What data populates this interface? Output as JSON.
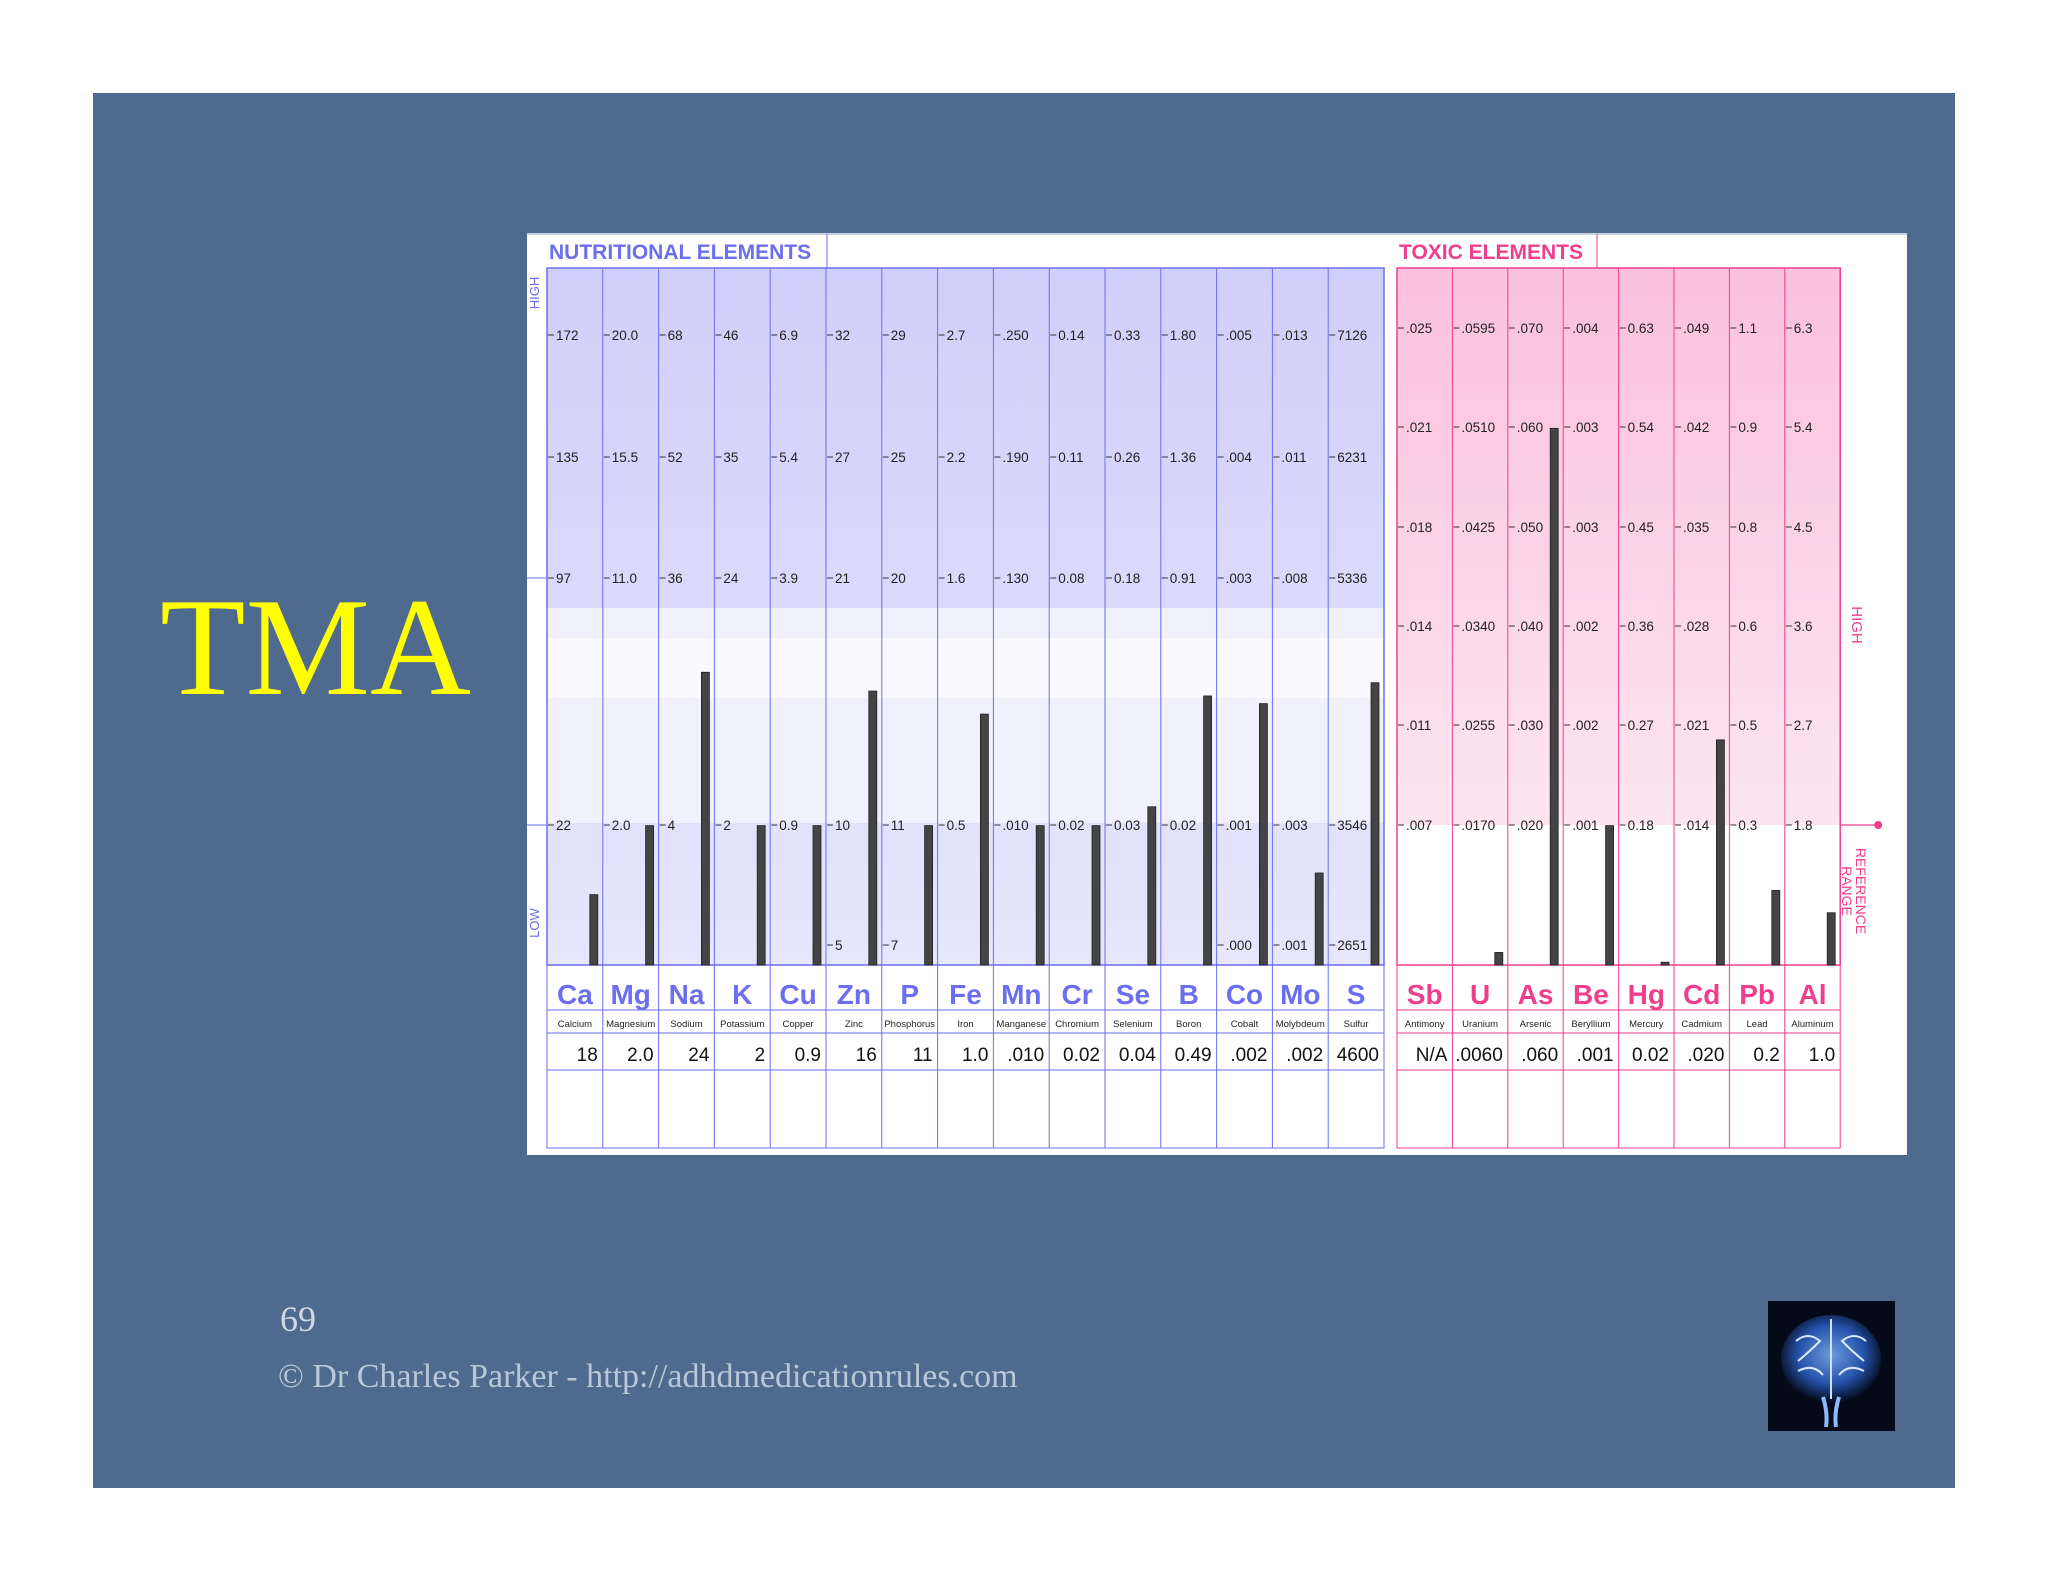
{
  "slide": {
    "title": "TMA",
    "page_number": "69",
    "footer": "©  Dr Charles Parker - http://adhdmedicationrules.com",
    "logo_icon": "brain-icon"
  },
  "colors": {
    "slide_background": "#4e6a8e",
    "title": "#ffff00",
    "nutritional": "#6b6ef0",
    "toxic": "#f03d8c",
    "bar": "#444444"
  },
  "chart_data": {
    "type": "bar",
    "groups": [
      {
        "title": "NUTRITIONAL  ELEMENTS",
        "side_label_high": "HIGH",
        "side_label_low": "LOW",
        "elements": [
          {
            "symbol": "Ca",
            "name": "Calcium",
            "result": "18",
            "ticks": [
              "172",
              "135",
              "97",
              "22"
            ],
            "level": 0.101
          },
          {
            "symbol": "Mg",
            "name": "Magnesium",
            "result": "2.0",
            "ticks": [
              "20.0",
              "15.5",
              "11.0",
              "2.0"
            ],
            "level": 0.2
          },
          {
            "symbol": "Na",
            "name": "Sodium",
            "result": "24",
            "ticks": [
              "68",
              "52",
              "36",
              "4"
            ],
            "level": 0.42
          },
          {
            "symbol": "K",
            "name": "Potassium",
            "result": "2",
            "ticks": [
              "46",
              "35",
              "24",
              "2"
            ],
            "level": 0.2
          },
          {
            "symbol": "Cu",
            "name": "Copper",
            "result": "0.9",
            "ticks": [
              "6.9",
              "5.4",
              "3.9",
              "0.9"
            ],
            "level": 0.2
          },
          {
            "symbol": "Zn",
            "name": "Zinc",
            "result": "16",
            "ticks": [
              "32",
              "27",
              "21",
              "10",
              "5"
            ],
            "level": 0.393
          },
          {
            "symbol": "P",
            "name": "Phosphorus",
            "result": "11",
            "ticks": [
              "29",
              "25",
              "20",
              "11",
              "7"
            ],
            "level": 0.2
          },
          {
            "symbol": "Fe",
            "name": "Iron",
            "result": "1.0",
            "ticks": [
              "2.7",
              "2.2",
              "1.6",
              "0.5"
            ],
            "level": 0.36
          },
          {
            "symbol": "Mn",
            "name": "Manganese",
            "result": ".010",
            "ticks": [
              ".250",
              ".190",
              ".130",
              ".010"
            ],
            "level": 0.2
          },
          {
            "symbol": "Cr",
            "name": "Chromium",
            "result": "0.02",
            "ticks": [
              "0.14",
              "0.11",
              "0.08",
              "0.02"
            ],
            "level": 0.2
          },
          {
            "symbol": "Se",
            "name": "Selenium",
            "result": "0.04",
            "ticks": [
              "0.33",
              "0.26",
              "0.18",
              "0.03"
            ],
            "level": 0.227
          },
          {
            "symbol": "B",
            "name": "Boron",
            "result": "0.49",
            "ticks": [
              "1.80",
              "1.36",
              "0.91",
              "0.02"
            ],
            "level": 0.386
          },
          {
            "symbol": "Co",
            "name": "Cobalt",
            "result": ".002",
            "ticks": [
              ".005",
              ".004",
              ".003",
              ".001",
              ".000"
            ],
            "level": 0.375
          },
          {
            "symbol": "Mo",
            "name": "Molybdeum",
            "result": ".002",
            "ticks": [
              ".013",
              ".011",
              ".008",
              ".003",
              ".001"
            ],
            "level": 0.132
          },
          {
            "symbol": "S",
            "name": "Sulfur",
            "result": "4600",
            "ticks": [
              "7126",
              "6231",
              "5336",
              "3546",
              "2651"
            ],
            "level": 0.405
          }
        ]
      },
      {
        "title": "TOXIC  ELEMENTS",
        "side_label_high": "HIGH",
        "side_label_reference": "REFERENCE RANGE",
        "elements": [
          {
            "symbol": "Sb",
            "name": "Antimony",
            "result": "N/A",
            "ticks": [
              ".025",
              ".021",
              ".018",
              ".014",
              ".011",
              ".007"
            ],
            "level": 0
          },
          {
            "symbol": "U",
            "name": "Uranium",
            "result": ".0060",
            "ticks": [
              ".0595",
              ".0510",
              ".0425",
              ".0340",
              ".0255",
              ".0170"
            ],
            "level": 0.018
          },
          {
            "symbol": "As",
            "name": "Arsenic",
            "result": ".060",
            "ticks": [
              ".070",
              ".060",
              ".050",
              ".040",
              ".030",
              ".020"
            ],
            "level": 0.77
          },
          {
            "symbol": "Be",
            "name": "Beryllium",
            "result": ".001",
            "ticks": [
              ".004",
              ".003",
              ".003",
              ".002",
              ".002",
              ".001"
            ],
            "level": 0.2
          },
          {
            "symbol": "Hg",
            "name": "Mercury",
            "result": "0.02",
            "ticks": [
              "0.63",
              "0.54",
              "0.45",
              "0.36",
              "0.27",
              "0.18"
            ],
            "level": 0.004
          },
          {
            "symbol": "Cd",
            "name": "Cadmium",
            "result": ".020",
            "ticks": [
              ".049",
              ".042",
              ".035",
              ".028",
              ".021",
              ".014"
            ],
            "level": 0.323
          },
          {
            "symbol": "Pb",
            "name": "Lead",
            "result": "0.2",
            "ticks": [
              "1.1",
              "0.9",
              "0.8",
              "0.6",
              "0.5",
              "0.3"
            ],
            "level": 0.107
          },
          {
            "symbol": "Al",
            "name": "Aluminum",
            "result": "1.0",
            "ticks": [
              "6.3",
              "5.4",
              "4.5",
              "3.6",
              "2.7",
              "1.8"
            ],
            "level": 0.075
          }
        ]
      }
    ]
  }
}
